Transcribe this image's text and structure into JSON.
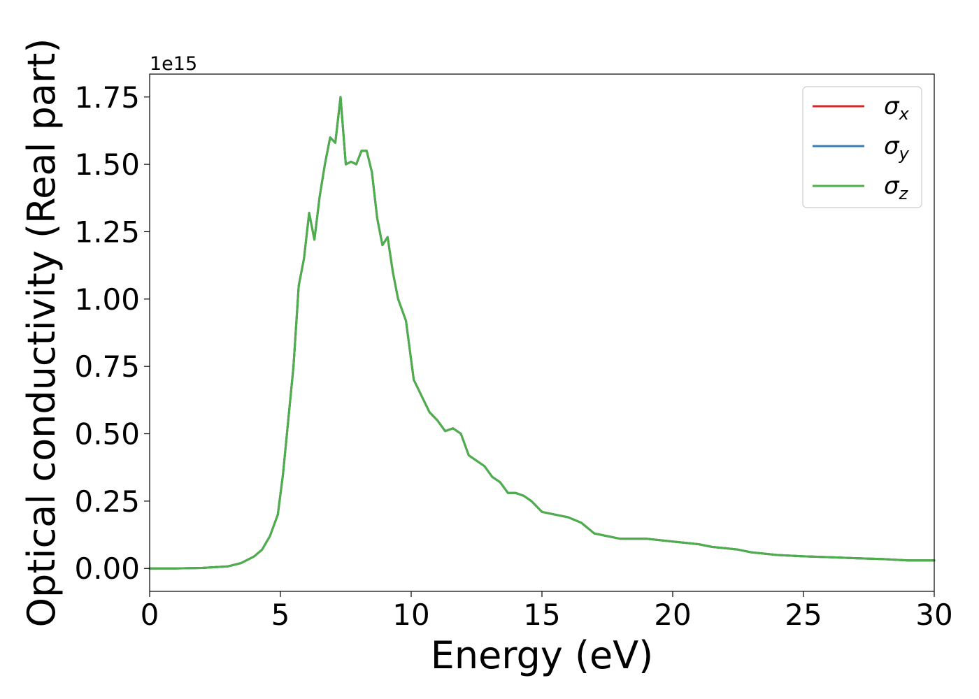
{
  "chart_data": {
    "type": "line",
    "xlabel": "Energy (eV)",
    "ylabel": "Optical conductivity (Real part)",
    "y_offset_label": "1e15",
    "xlim": [
      0,
      30
    ],
    "ylim": [
      -0.085,
      1.835
    ],
    "x_ticks": [
      0,
      5,
      10,
      15,
      20,
      25,
      30
    ],
    "x_tick_labels": [
      "0",
      "5",
      "10",
      "15",
      "20",
      "25",
      "30"
    ],
    "y_ticks": [
      0,
      0.25,
      0.5,
      0.75,
      1.0,
      1.25,
      1.5,
      1.75
    ],
    "y_tick_labels": [
      "0.00",
      "0.25",
      "0.50",
      "0.75",
      "1.00",
      "1.25",
      "1.50",
      "1.75"
    ],
    "grid": false,
    "legend_position": "top-right",
    "x": [
      0,
      1,
      2,
      3,
      3.5,
      4,
      4.3,
      4.6,
      4.9,
      5.1,
      5.3,
      5.5,
      5.7,
      5.9,
      6.1,
      6.3,
      6.5,
      6.7,
      6.9,
      7.1,
      7.3,
      7.5,
      7.7,
      7.9,
      8.1,
      8.3,
      8.5,
      8.7,
      8.9,
      9.1,
      9.3,
      9.5,
      9.8,
      10.1,
      10.4,
      10.7,
      11.0,
      11.3,
      11.6,
      11.9,
      12.2,
      12.5,
      12.8,
      13.1,
      13.4,
      13.7,
      14.0,
      14.3,
      14.6,
      15.0,
      15.5,
      16.0,
      16.5,
      17.0,
      17.5,
      18.0,
      18.5,
      19.0,
      19.5,
      20.0,
      20.5,
      21.0,
      21.5,
      22.0,
      22.5,
      23.0,
      24.0,
      25.0,
      26.0,
      27.0,
      28.0,
      29.0,
      30.0
    ],
    "series": [
      {
        "name": "σx",
        "color": "#d62728",
        "values": [
          0.0,
          0.0,
          0.002,
          0.008,
          0.02,
          0.045,
          0.07,
          0.12,
          0.2,
          0.35,
          0.55,
          0.75,
          1.05,
          1.15,
          1.32,
          1.22,
          1.38,
          1.5,
          1.6,
          1.58,
          1.75,
          1.5,
          1.51,
          1.5,
          1.55,
          1.55,
          1.47,
          1.3,
          1.2,
          1.23,
          1.1,
          1.0,
          0.92,
          0.7,
          0.64,
          0.58,
          0.55,
          0.51,
          0.52,
          0.5,
          0.42,
          0.4,
          0.38,
          0.34,
          0.32,
          0.28,
          0.28,
          0.27,
          0.25,
          0.21,
          0.2,
          0.19,
          0.17,
          0.13,
          0.12,
          0.11,
          0.11,
          0.11,
          0.105,
          0.1,
          0.095,
          0.09,
          0.08,
          0.075,
          0.07,
          0.06,
          0.05,
          0.045,
          0.042,
          0.038,
          0.035,
          0.03,
          0.03
        ]
      },
      {
        "name": "σy",
        "color": "#377eb8",
        "values": [
          0.0,
          0.0,
          0.002,
          0.008,
          0.02,
          0.045,
          0.07,
          0.12,
          0.2,
          0.35,
          0.55,
          0.75,
          1.05,
          1.15,
          1.32,
          1.22,
          1.38,
          1.5,
          1.6,
          1.58,
          1.75,
          1.5,
          1.51,
          1.5,
          1.55,
          1.55,
          1.47,
          1.3,
          1.2,
          1.23,
          1.1,
          1.0,
          0.92,
          0.7,
          0.64,
          0.58,
          0.55,
          0.51,
          0.52,
          0.5,
          0.42,
          0.4,
          0.38,
          0.34,
          0.32,
          0.28,
          0.28,
          0.27,
          0.25,
          0.21,
          0.2,
          0.19,
          0.17,
          0.13,
          0.12,
          0.11,
          0.11,
          0.11,
          0.105,
          0.1,
          0.095,
          0.09,
          0.08,
          0.075,
          0.07,
          0.06,
          0.05,
          0.045,
          0.042,
          0.038,
          0.035,
          0.03,
          0.03
        ]
      },
      {
        "name": "σz",
        "color": "#4daf4a",
        "values": [
          0.0,
          0.0,
          0.002,
          0.008,
          0.02,
          0.045,
          0.07,
          0.12,
          0.2,
          0.35,
          0.55,
          0.75,
          1.05,
          1.15,
          1.32,
          1.22,
          1.38,
          1.5,
          1.6,
          1.58,
          1.75,
          1.5,
          1.51,
          1.5,
          1.55,
          1.55,
          1.47,
          1.3,
          1.2,
          1.23,
          1.1,
          1.0,
          0.92,
          0.7,
          0.64,
          0.58,
          0.55,
          0.51,
          0.52,
          0.5,
          0.42,
          0.4,
          0.38,
          0.34,
          0.32,
          0.28,
          0.28,
          0.27,
          0.25,
          0.21,
          0.2,
          0.19,
          0.17,
          0.13,
          0.12,
          0.11,
          0.11,
          0.11,
          0.105,
          0.1,
          0.095,
          0.09,
          0.08,
          0.075,
          0.07,
          0.06,
          0.05,
          0.045,
          0.042,
          0.038,
          0.035,
          0.03,
          0.03
        ]
      }
    ],
    "legend": [
      {
        "symbol": "σ",
        "sub": "x",
        "color": "#d62728"
      },
      {
        "symbol": "σ",
        "sub": "y",
        "color": "#377eb8"
      },
      {
        "symbol": "σ",
        "sub": "z",
        "color": "#4daf4a"
      }
    ]
  }
}
